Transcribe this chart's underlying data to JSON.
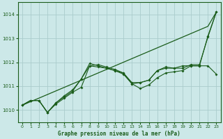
{
  "title": "Graphe pression niveau de la mer (hPa)",
  "bg_color": "#cce8e8",
  "line_color": "#1a5c1a",
  "grid_color": "#aacccc",
  "ylim": [
    1009.5,
    1014.5
  ],
  "xlim": [
    -0.5,
    23.5
  ],
  "yticks": [
    1010,
    1011,
    1012,
    1013,
    1014
  ],
  "xticks": [
    0,
    1,
    2,
    3,
    4,
    5,
    6,
    7,
    8,
    9,
    10,
    11,
    12,
    13,
    14,
    15,
    16,
    17,
    18,
    19,
    20,
    21,
    22,
    23
  ],
  "series_no_marker": [
    [
      1010.2,
      1010.35,
      1010.5,
      1010.65,
      1010.8,
      1010.95,
      1011.1,
      1011.25,
      1011.4,
      1011.55,
      1011.7,
      1011.85,
      1012.0,
      1012.15,
      1012.3,
      1012.45,
      1012.6,
      1012.75,
      1012.9,
      1013.05,
      1013.2,
      1013.35,
      1013.5,
      1014.1
    ]
  ],
  "series_with_marker": [
    [
      1010.2,
      1010.4,
      1010.4,
      1009.9,
      1010.25,
      1010.5,
      1010.75,
      1010.95,
      1011.85,
      1011.9,
      1011.8,
      1011.7,
      1011.55,
      1011.15,
      1011.15,
      1011.25,
      1011.65,
      1011.8,
      1011.75,
      1011.75,
      1011.9,
      1011.9,
      1013.05,
      1014.1
    ],
    [
      1010.2,
      1010.4,
      1010.4,
      1009.9,
      1010.3,
      1010.55,
      1010.8,
      1011.3,
      1011.85,
      1011.8,
      1011.75,
      1011.65,
      1011.5,
      1011.1,
      1010.9,
      1011.05,
      1011.35,
      1011.55,
      1011.6,
      1011.65,
      1011.85,
      1011.85,
      1011.85,
      1011.5
    ],
    [
      1010.2,
      1010.4,
      1010.4,
      1009.9,
      1010.3,
      1010.6,
      1010.85,
      1011.3,
      1011.95,
      1011.85,
      1011.75,
      1011.65,
      1011.55,
      1011.1,
      1011.15,
      1011.25,
      1011.65,
      1011.75,
      1011.75,
      1011.85,
      1011.85,
      1011.85,
      1013.1,
      1014.1
    ]
  ]
}
